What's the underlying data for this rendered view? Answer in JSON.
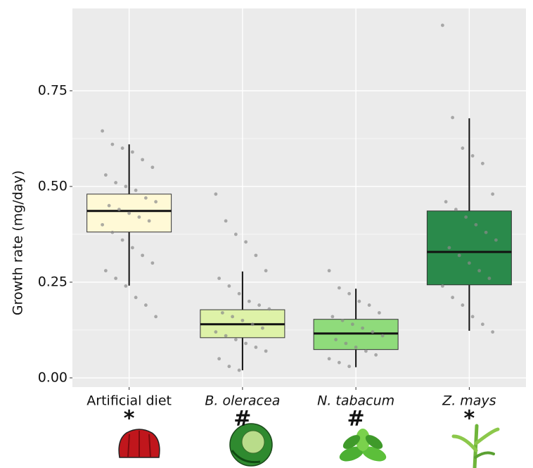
{
  "chart_data": {
    "type": "box",
    "y_label": "Growth rate (mg/day)",
    "categories": [
      "Artificial diet",
      "B. oleracea",
      "N. tabacum",
      "Z. mays"
    ],
    "annotations": [
      "*",
      "#",
      "#",
      "*"
    ],
    "boxes": [
      {
        "whisker_low": 0.241,
        "q1": 0.381,
        "median": 0.436,
        "q3": 0.48,
        "whisker_high": 0.61,
        "color": "#fff9d6",
        "points": [
          0.645,
          0.61,
          0.6,
          0.59,
          0.57,
          0.55,
          0.53,
          0.51,
          0.5,
          0.49,
          0.47,
          0.46,
          0.45,
          0.44,
          0.43,
          0.42,
          0.41,
          0.4,
          0.38,
          0.36,
          0.34,
          0.32,
          0.3,
          0.28,
          0.26,
          0.24,
          0.21,
          0.19,
          0.16
        ]
      },
      {
        "whisker_low": 0.02,
        "q1": 0.105,
        "median": 0.14,
        "q3": 0.178,
        "whisker_high": 0.278,
        "color": "#def2a8",
        "points": [
          0.48,
          0.41,
          0.375,
          0.355,
          0.32,
          0.28,
          0.26,
          0.24,
          0.22,
          0.2,
          0.19,
          0.18,
          0.17,
          0.16,
          0.15,
          0.14,
          0.13,
          0.12,
          0.11,
          0.1,
          0.09,
          0.08,
          0.07,
          0.05,
          0.03,
          0.02
        ]
      },
      {
        "whisker_low": 0.028,
        "q1": 0.074,
        "median": 0.116,
        "q3": 0.153,
        "whisker_high": 0.233,
        "color": "#8fdb7b",
        "points": [
          0.28,
          0.235,
          0.22,
          0.2,
          0.19,
          0.17,
          0.16,
          0.15,
          0.14,
          0.13,
          0.12,
          0.11,
          0.1,
          0.09,
          0.08,
          0.07,
          0.06,
          0.05,
          0.04,
          0.03
        ]
      },
      {
        "whisker_low": 0.123,
        "q1": 0.243,
        "median": 0.329,
        "q3": 0.436,
        "whisker_high": 0.678,
        "color": "#2a8a4b",
        "points": [
          0.921,
          0.68,
          0.6,
          0.58,
          0.56,
          0.48,
          0.46,
          0.44,
          0.42,
          0.4,
          0.38,
          0.36,
          0.34,
          0.32,
          0.3,
          0.28,
          0.26,
          0.24,
          0.21,
          0.19,
          0.16,
          0.14,
          0.12
        ]
      }
    ],
    "ylim": [
      -0.024,
      0.965
    ],
    "yticks": [
      {
        "value": 0,
        "label": "0.00"
      },
      {
        "value": 0.25,
        "label": "0.25"
      },
      {
        "value": 0.5,
        "label": "0.50"
      },
      {
        "value": 0.75,
        "label": "0.75"
      }
    ],
    "grid": true
  }
}
